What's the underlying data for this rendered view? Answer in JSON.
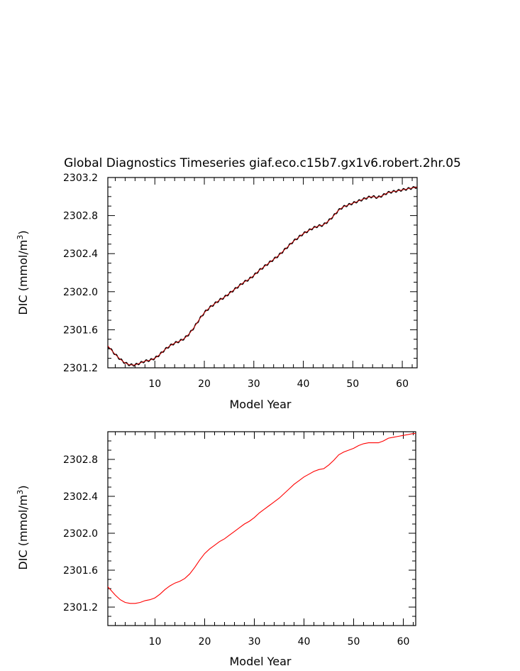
{
  "chart_data": [
    {
      "type": "line",
      "title": "Global Diagnostics Timeseries giaf.eco.c15b7.gx1v6.robert.2hr.05",
      "xlabel": "Model Year",
      "ylabel_main": "DIC (mmol/m",
      "ylabel_sup": "3",
      "ylabel_close": ")",
      "xlim": [
        0.5,
        63
      ],
      "ylim": [
        2301.2,
        2303.2
      ],
      "xticks": [
        10,
        20,
        30,
        40,
        50,
        60
      ],
      "xtick_labels": [
        "10",
        "20",
        "30",
        "40",
        "50",
        "60"
      ],
      "yticks": [
        2301.2,
        2301.6,
        2302.0,
        2302.4,
        2302.8,
        2303.2
      ],
      "ytick_labels": [
        "2301.2",
        "2301.6",
        "2302.0",
        "2302.4",
        "2302.8",
        "2303.2"
      ],
      "series": [
        {
          "style": "monthly",
          "color": "#000000",
          "overlay_color": "#cc0000",
          "x": [
            0.5,
            1,
            2,
            3,
            4,
            5,
            6,
            7,
            8,
            9,
            10,
            11,
            12,
            13,
            14,
            15,
            16,
            17,
            18,
            19,
            20,
            21,
            22,
            23,
            24,
            25,
            26,
            27,
            28,
            29,
            30,
            31,
            32,
            33,
            34,
            35,
            36,
            37,
            38,
            39,
            40,
            41,
            42,
            43,
            44,
            45,
            46,
            47,
            48,
            49,
            50,
            51,
            52,
            53,
            54,
            55,
            56,
            57,
            58,
            59,
            60,
            61,
            62,
            63
          ],
          "y": [
            2301.43,
            2301.4,
            2301.34,
            2301.29,
            2301.25,
            2301.23,
            2301.23,
            2301.25,
            2301.27,
            2301.28,
            2301.3,
            2301.34,
            2301.39,
            2301.43,
            2301.46,
            2301.48,
            2301.51,
            2301.56,
            2301.63,
            2301.71,
            2301.78,
            2301.83,
            2301.87,
            2301.91,
            2301.94,
            2301.98,
            2302.02,
            2302.06,
            2302.1,
            2302.13,
            2302.17,
            2302.22,
            2302.26,
            2302.3,
            2302.34,
            2302.38,
            2302.43,
            2302.48,
            2302.53,
            2302.57,
            2302.61,
            2302.64,
            2302.67,
            2302.69,
            2302.7,
            2302.74,
            2302.79,
            2302.85,
            2302.89,
            2302.91,
            2302.93,
            2302.95,
            2302.97,
            2302.99,
            2303.0,
            2302.99,
            2303.01,
            2303.04,
            2303.05,
            2303.06,
            2303.07,
            2303.08,
            2303.09,
            2303.1
          ]
        }
      ]
    },
    {
      "type": "line",
      "xlabel": "Model Year",
      "ylabel_main": "DIC (mmol/m",
      "ylabel_sup": "3",
      "ylabel_close": ")",
      "xlim": [
        0.5,
        62.5
      ],
      "ylim": [
        2301.0,
        2303.1
      ],
      "xticks": [
        10,
        20,
        30,
        40,
        50,
        60
      ],
      "xtick_labels": [
        "10",
        "20",
        "30",
        "40",
        "50",
        "60"
      ],
      "yticks": [
        2301.2,
        2301.6,
        2302.0,
        2302.4,
        2302.8
      ],
      "ytick_labels": [
        "2301.2",
        "2301.6",
        "2302.0",
        "2302.4",
        "2302.8"
      ],
      "series": [
        {
          "style": "annual",
          "color": "#ff0000",
          "x": [
            0.5,
            1,
            2,
            3,
            4,
            5,
            6,
            7,
            8,
            9,
            10,
            11,
            12,
            13,
            14,
            15,
            16,
            17,
            18,
            19,
            20,
            21,
            22,
            23,
            24,
            25,
            26,
            27,
            28,
            29,
            30,
            31,
            32,
            33,
            34,
            35,
            36,
            37,
            38,
            39,
            40,
            41,
            42,
            43,
            44,
            45,
            46,
            47,
            48,
            49,
            50,
            51,
            52,
            53,
            54,
            55,
            56,
            57,
            58,
            59,
            60,
            61,
            62,
            62.5
          ],
          "y": [
            2301.42,
            2301.39,
            2301.33,
            2301.28,
            2301.25,
            2301.24,
            2301.24,
            2301.25,
            2301.27,
            2301.28,
            2301.3,
            2301.34,
            2301.39,
            2301.43,
            2301.46,
            2301.48,
            2301.51,
            2301.56,
            2301.63,
            2301.71,
            2301.78,
            2301.83,
            2301.87,
            2301.91,
            2301.94,
            2301.98,
            2302.02,
            2302.06,
            2302.1,
            2302.13,
            2302.17,
            2302.22,
            2302.26,
            2302.3,
            2302.34,
            2302.38,
            2302.43,
            2302.48,
            2302.53,
            2302.57,
            2302.61,
            2302.64,
            2302.67,
            2302.69,
            2302.7,
            2302.74,
            2302.79,
            2302.85,
            2302.88,
            2302.9,
            2302.92,
            2302.95,
            2302.97,
            2302.98,
            2302.98,
            2302.98,
            2303.0,
            2303.03,
            2303.04,
            2303.05,
            2303.06,
            2303.07,
            2303.08,
            2303.08
          ]
        }
      ]
    }
  ]
}
